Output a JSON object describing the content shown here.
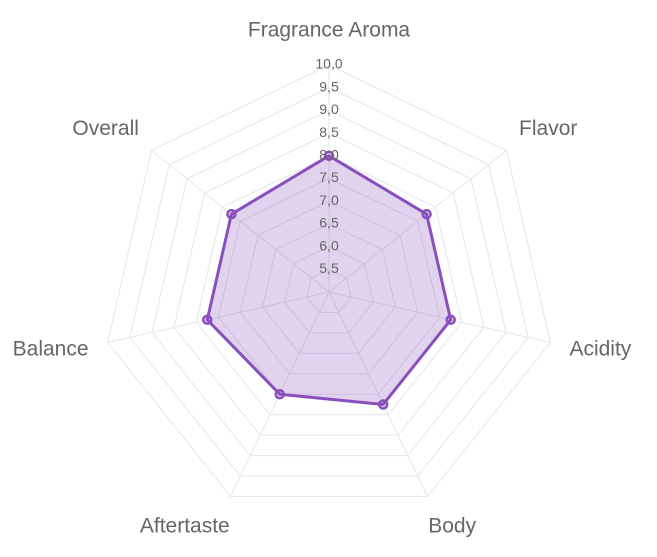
{
  "chart_data": {
    "type": "radar",
    "categories": [
      "Fragrance Aroma",
      "Flavor",
      "Acidity",
      "Body",
      "Aftertaste",
      "Balance",
      "Overall"
    ],
    "series": [
      {
        "values": [
          8.0,
          7.75,
          7.75,
          7.75,
          7.5,
          7.75,
          7.75
        ]
      }
    ],
    "rlim": [
      5.0,
      10.0
    ],
    "ticks": [
      5.5,
      6.0,
      6.5,
      7.0,
      7.5,
      8.0,
      8.5,
      9.0,
      9.5,
      10.0
    ],
    "tick_labels": [
      "5,5",
      "6,0",
      "6,5",
      "7,0",
      "7,5",
      "8,0",
      "8,5",
      "9,0",
      "9,5",
      "10,0"
    ],
    "grid": true,
    "colors": {
      "series_stroke": "#8950bd",
      "series_fill": "rgba(137,80,189,0.25)",
      "grid": "#e6e6e6",
      "label": "#666666"
    }
  }
}
